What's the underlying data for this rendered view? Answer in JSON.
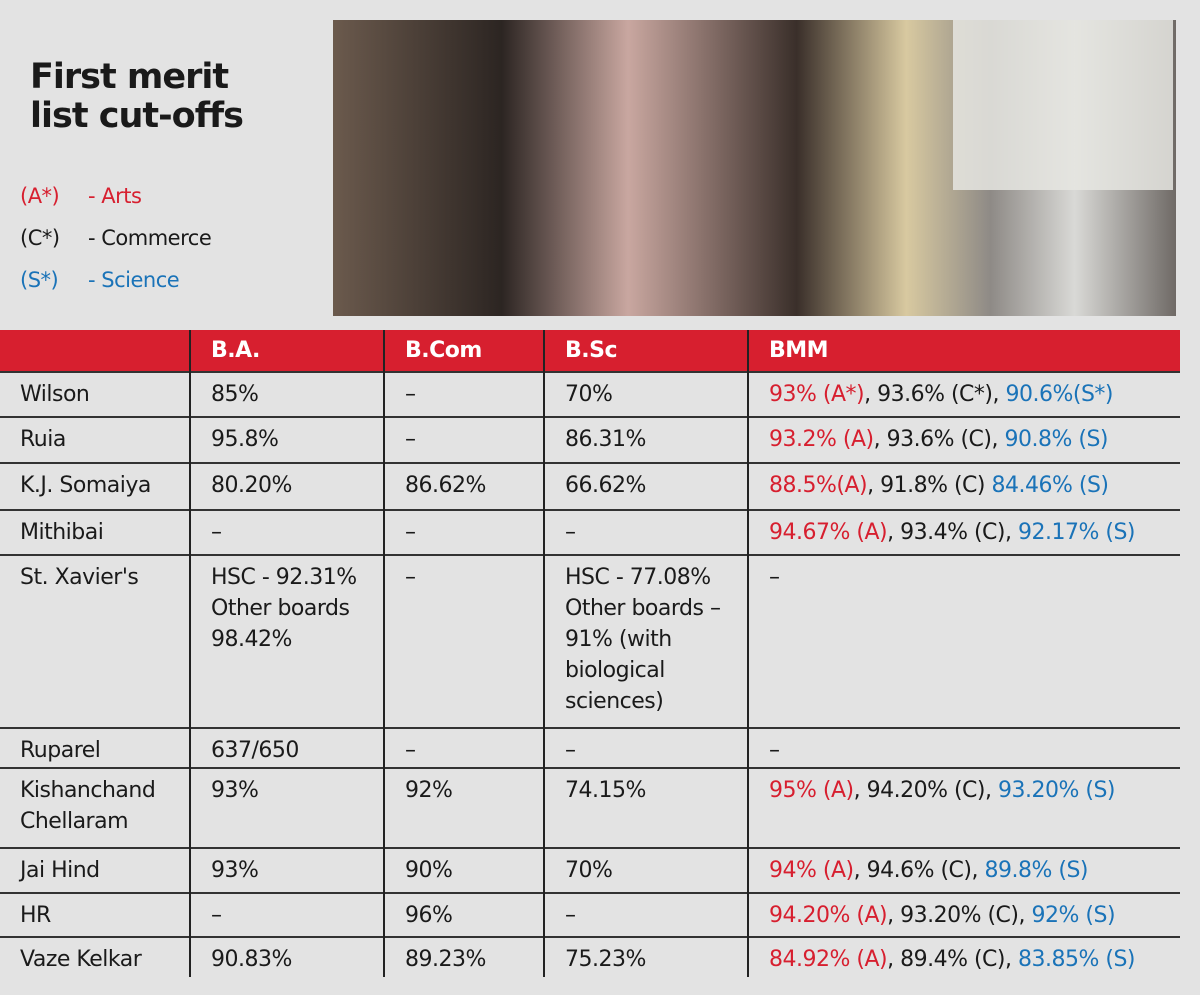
{
  "title": [
    "First merit",
    "list cut-offs"
  ],
  "legend": [
    {
      "code": "(A*)",
      "label": "- Arts",
      "color": "#d71f2f"
    },
    {
      "code": "(C*)",
      "label": "- Commerce",
      "color": "#1a1a1a"
    },
    {
      "code": "(S*)",
      "label": "- Science",
      "color": "#1a73b8"
    }
  ],
  "headers": [
    "",
    "B.A.",
    "B.Com",
    "B.Sc",
    "BMM"
  ],
  "rows": [
    {
      "college": "Wilson",
      "ba": "85%",
      "bcom": "–",
      "bsc": "70%",
      "bmm": [
        {
          "t": "93% (A*)",
          "c": "red"
        },
        {
          "t": ", 93.6% (C*), ",
          "c": ""
        },
        {
          "t": "90.6%(S*)",
          "c": "blue"
        }
      ]
    },
    {
      "college": "Ruia",
      "ba": "95.8%",
      "bcom": "–",
      "bsc": "86.31%",
      "bmm": [
        {
          "t": "93.2% (A)",
          "c": "red"
        },
        {
          "t": ", 93.6% (C), ",
          "c": ""
        },
        {
          "t": "90.8% (S)",
          "c": "blue"
        }
      ]
    },
    {
      "college": "K.J. Somaiya",
      "ba": "80.20%",
      "bcom": "86.62%",
      "bsc": "66.62%",
      "bmm": [
        {
          "t": "88.5%(A)",
          "c": "red"
        },
        {
          "t": ", 91.8% (C) ",
          "c": ""
        },
        {
          "t": "84.46% (S)",
          "c": "blue"
        }
      ]
    },
    {
      "college": "Mithibai",
      "ba": "–",
      "bcom": "–",
      "bsc": "–",
      "bmm": [
        {
          "t": "94.67% (A)",
          "c": "red"
        },
        {
          "t": ", 93.4% (C), ",
          "c": ""
        },
        {
          "t": "92.17% (S)",
          "c": "blue"
        }
      ]
    },
    {
      "college": "St. Xavier's",
      "ba": "HSC - 92.31% Other boards 98.42%",
      "bcom": "–",
      "bsc": "HSC - 77.08% Other boards – 91% (with biological sciences)",
      "bmm": [
        {
          "t": "–",
          "c": ""
        }
      ]
    },
    {
      "college": "Ruparel",
      "ba": "637/650",
      "bcom": "–",
      "bsc": "–",
      "bmm": [
        {
          "t": "–",
          "c": ""
        }
      ]
    },
    {
      "college": "Kishanchand Chellaram",
      "ba": "93%",
      "bcom": "92%",
      "bsc": "74.15%",
      "bmm": [
        {
          "t": "95% (A)",
          "c": "red"
        },
        {
          "t": ", 94.20% (C), ",
          "c": ""
        },
        {
          "t": "93.20% (S)",
          "c": "blue"
        }
      ]
    },
    {
      "college": "Jai Hind",
      "ba": "93%",
      "bcom": "90%",
      "bsc": "70%",
      "bmm": [
        {
          "t": "94% (A)",
          "c": "red"
        },
        {
          "t": ", 94.6% (C), ",
          "c": ""
        },
        {
          "t": "89.8% (S)",
          "c": "blue"
        }
      ]
    },
    {
      "college": "HR",
      "ba": "–",
      "bcom": "96%",
      "bsc": "–",
      "bmm": [
        {
          "t": "94.20% (A)",
          "c": "red"
        },
        {
          "t": ", 93.20% (C), ",
          "c": ""
        },
        {
          "t": "92% (S)",
          "c": "blue"
        }
      ]
    },
    {
      "college": "Vaze Kelkar",
      "ba": "90.83%",
      "bcom": "89.23%",
      "bsc": "75.23%",
      "bmm": [
        {
          "t": "84.92% (A)",
          "c": "red"
        },
        {
          "t": ", 89.4% (C), ",
          "c": ""
        },
        {
          "t": "83.85% (S)",
          "c": "blue"
        }
      ]
    }
  ]
}
